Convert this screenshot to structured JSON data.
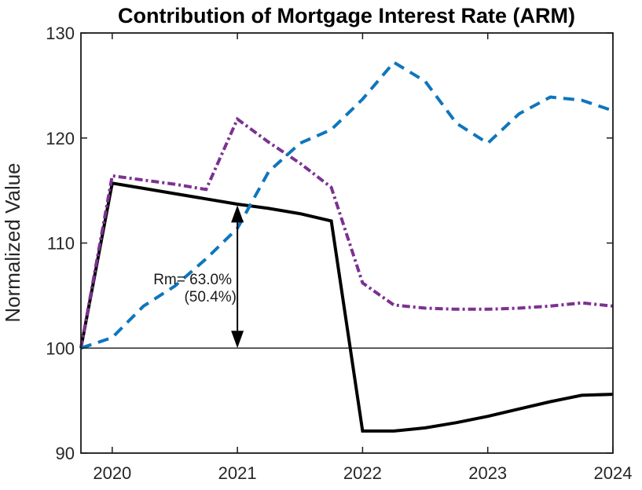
{
  "chart_data": {
    "type": "line",
    "title": "Contribution of Mortgage Interest Rate (ARM)",
    "xlabel": "",
    "ylabel": "Normalized Value",
    "xlim": [
      2019.75,
      2024
    ],
    "ylim": [
      90,
      130
    ],
    "xticks": [
      2020,
      2021,
      2022,
      2023,
      2024
    ],
    "xtick_labels": [
      "2020",
      "2021",
      "2022",
      "2023",
      "2024"
    ],
    "yticks": [
      90,
      100,
      110,
      120,
      130
    ],
    "ytick_labels": [
      "90",
      "100",
      "110",
      "120",
      "130"
    ],
    "grid": false,
    "legend": null,
    "axis_color": "#1a1a1a",
    "x": [
      2019.75,
      2020,
      2020.25,
      2020.5,
      2020.75,
      2021,
      2021.25,
      2021.5,
      2021.75,
      2022,
      2022.25,
      2022.5,
      2022.75,
      2023,
      2023.25,
      2023.5,
      2023.75,
      2024
    ],
    "series": [
      {
        "name": "black solid",
        "color": "#000000",
        "style": "solid",
        "values": [
          100,
          115.7,
          115.2,
          114.7,
          114.2,
          113.7,
          113.3,
          112.8,
          112.1,
          92.1,
          92.1,
          92.4,
          92.9,
          93.5,
          94.2,
          94.9,
          95.5,
          95.6
        ]
      },
      {
        "name": "purple dash-dot",
        "color": "#7c3191",
        "style": "dashdot",
        "values": [
          100,
          116.4,
          116.0,
          115.6,
          115.1,
          121.8,
          119.6,
          117.6,
          115.3,
          106.2,
          104.1,
          103.8,
          103.7,
          103.7,
          103.8,
          104.0,
          104.3,
          104.0
        ]
      },
      {
        "name": "blue dashed",
        "color": "#0f76bc",
        "style": "dashed",
        "values": [
          100,
          101.0,
          104.0,
          105.9,
          108.5,
          111.4,
          116.8,
          119.5,
          120.8,
          123.7,
          127.2,
          125.4,
          121.4,
          119.5,
          122.3,
          123.9,
          123.6,
          122.6
        ]
      }
    ],
    "reference_line": {
      "y": 100,
      "color": "#000000"
    },
    "annotation": {
      "line1": "Rm= 63.0%",
      "line2": "(50.4%)",
      "arrow_x": 2021,
      "arrow_y_from": 100,
      "arrow_y_to": 113.6,
      "arrow_color": "#000000"
    }
  }
}
